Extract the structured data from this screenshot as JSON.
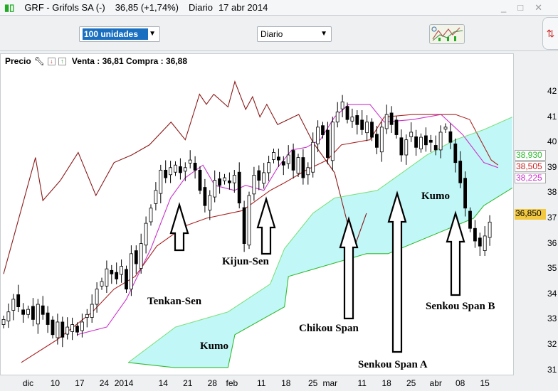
{
  "window": {
    "title": "GRF - Grifols SA (-)",
    "price": "36,85 (+1,74%)",
    "period": "Diario",
    "date": "17 abr 2014",
    "controls": [
      "minimize",
      "maximize",
      "close"
    ]
  },
  "toolbar": {
    "quantity": "100 unidades",
    "timeframe": "Diario",
    "ichimoku_icon": "ichimoku-indicator-icon"
  },
  "chart_header": {
    "label": "Precio",
    "bid_ask": "Venta : 36,81 Compra : 36,88"
  },
  "chart_data": {
    "type": "candlestick",
    "title": "",
    "ylim": [
      31,
      42
    ],
    "y_ticks": [
      "42",
      "41",
      "40",
      "39",
      "38",
      "37",
      "36",
      "35",
      "34",
      "33",
      "32",
      "31"
    ],
    "x_ticks": [
      {
        "label": "dic",
        "i": 5
      },
      {
        "label": "10",
        "i": 10.5
      },
      {
        "label": "17",
        "i": 15.5
      },
      {
        "label": "24",
        "i": 20.5
      },
      {
        "label": "2014",
        "i": 24.5
      },
      {
        "label": "14",
        "i": 32.5
      },
      {
        "label": "21",
        "i": 37.5
      },
      {
        "label": "28",
        "i": 42.5
      },
      {
        "label": "feb",
        "i": 46.5
      },
      {
        "label": "11",
        "i": 52.5
      },
      {
        "label": "18",
        "i": 57.5
      },
      {
        "label": "25",
        "i": 63
      },
      {
        "label": "mar",
        "i": 66.5
      },
      {
        "label": "11",
        "i": 73
      },
      {
        "label": "18",
        "i": 78
      },
      {
        "label": "25",
        "i": 83
      },
      {
        "label": "abr",
        "i": 88
      },
      {
        "label": "08",
        "i": 93
      },
      {
        "label": "15",
        "i": 98
      }
    ],
    "closes": [
      33.0,
      33.3,
      33.8,
      33.5,
      33.2,
      33.4,
      33.0,
      33.6,
      33.2,
      32.8,
      32.4,
      32.9,
      32.3,
      32.7,
      32.8,
      32.5,
      32.9,
      33.2,
      33.6,
      34.2,
      34.5,
      35.0,
      34.8,
      34.6,
      35.1,
      34.2,
      35.6,
      35.2,
      36.0,
      36.8,
      37.4,
      38.1,
      38.9,
      38.6,
      39.0,
      39.1,
      38.8,
      39.0,
      39.3,
      38.9,
      38.1,
      37.5,
      37.9,
      38.5,
      38.3,
      38.6,
      38.4,
      38.7,
      37.6,
      36.0,
      37.9,
      38.7,
      38.5,
      38.8,
      39.2,
      39.6,
      39.3,
      39.1,
      39.5,
      38.9,
      39.4,
      38.6,
      39.0,
      40.0,
      40.6,
      40.3,
      39.4,
      40.8,
      41.2,
      41.6,
      40.9,
      41.0,
      40.7,
      40.5,
      40.8,
      40.2,
      39.8,
      40.6,
      41.1,
      40.7,
      40.3,
      39.5,
      40.1,
      40.4,
      39.8,
      40.2,
      39.9,
      40.0,
      39.7,
      40.4,
      40.6,
      40.0,
      39.2,
      38.4,
      37.4,
      36.6,
      36.1,
      35.9,
      36.3,
      36.85
    ],
    "lines": {
      "tenkan_sen": {
        "color": "#cc33cc",
        "points": [
          [
            15,
            32.4
          ],
          [
            21,
            32.7
          ],
          [
            25,
            33.8
          ],
          [
            30,
            35.8
          ],
          [
            34,
            37.8
          ],
          [
            37,
            38.6
          ],
          [
            40.6,
            39.1
          ],
          [
            43,
            38.3
          ],
          [
            47,
            38.1
          ],
          [
            49.3,
            38.3
          ],
          [
            53,
            38.1
          ],
          [
            55.8,
            39.0
          ],
          [
            58.7,
            39.7
          ],
          [
            61.6,
            39.8
          ],
          [
            64.5,
            40.1
          ],
          [
            67.4,
            41.0
          ],
          [
            70.3,
            41.5
          ],
          [
            74.6,
            41.5
          ],
          [
            77.5,
            40.8
          ],
          [
            83.3,
            40.9
          ],
          [
            89.1,
            41.1
          ],
          [
            93.5,
            40.3
          ],
          [
            97.8,
            39.2
          ],
          [
            100.7,
            39.0
          ]
        ]
      },
      "kijun_sen": {
        "color": "#aa2222",
        "points": [
          [
            3.6,
            31.3
          ],
          [
            10.9,
            32.2
          ],
          [
            18.1,
            33.3
          ],
          [
            22.5,
            34.2
          ],
          [
            26.8,
            34.7
          ],
          [
            31.2,
            35.9
          ],
          [
            37,
            36.7
          ],
          [
            41.3,
            37.0
          ],
          [
            48.6,
            37.3
          ],
          [
            54.3,
            38.1
          ],
          [
            57.2,
            38.4
          ],
          [
            61.6,
            38.9
          ],
          [
            65.9,
            39.3
          ],
          [
            68.8,
            39.9
          ],
          [
            74.6,
            40.1
          ],
          [
            77.5,
            41.0
          ],
          [
            83.3,
            41.1
          ],
          [
            92,
            41.1
          ],
          [
            94.9,
            40.9
          ],
          [
            99.3,
            39.3
          ],
          [
            100.7,
            39.1
          ]
        ]
      },
      "chikou_span": {
        "color": "#8b1a1a",
        "points": [
          [
            0,
            34.8
          ],
          [
            6.5,
            39.4
          ],
          [
            8,
            37.7
          ],
          [
            11.6,
            38.5
          ],
          [
            15.2,
            39.6
          ],
          [
            18.8,
            37.9
          ],
          [
            22.5,
            39.2
          ],
          [
            26.1,
            39.5
          ],
          [
            29.7,
            39.9
          ],
          [
            34.1,
            40.8
          ],
          [
            37,
            40.1
          ],
          [
            39.1,
            41.4
          ],
          [
            39.9,
            41.9
          ],
          [
            41.3,
            41.5
          ],
          [
            42.8,
            41.9
          ],
          [
            45.7,
            41.4
          ],
          [
            47.1,
            42.4
          ],
          [
            49.3,
            41.3
          ],
          [
            50.7,
            41.8
          ],
          [
            52.2,
            41.0
          ],
          [
            53.6,
            41.5
          ],
          [
            55.8,
            40.7
          ],
          [
            60.1,
            41.1
          ],
          [
            63,
            40.0
          ],
          [
            67.4,
            38.8
          ],
          [
            70.3,
            36.6
          ],
          [
            71.7,
            36.0
          ],
          [
            73.9,
            37.2
          ]
        ]
      },
      "senkou_span_a": {
        "color": "#7fe07f",
        "points": [
          [
            25.4,
            31.3
          ],
          [
            35,
            32.7
          ],
          [
            45.7,
            33.3
          ],
          [
            54.3,
            34.4
          ],
          [
            57.2,
            35.8
          ],
          [
            63,
            37.2
          ],
          [
            67.4,
            37.8
          ],
          [
            76.1,
            38.1
          ],
          [
            81.9,
            38.9
          ],
          [
            86.2,
            39.5
          ],
          [
            92,
            40.1
          ],
          [
            97.8,
            40.5
          ],
          [
            103.6,
            41.0
          ]
        ]
      },
      "senkou_span_b": {
        "color": "#33bb33",
        "points": [
          [
            25.4,
            31.3
          ],
          [
            34.8,
            31.1
          ],
          [
            45.7,
            31.1
          ],
          [
            47.1,
            32.4
          ],
          [
            57.2,
            33.5
          ],
          [
            58,
            34.7
          ],
          [
            73.9,
            35.6
          ],
          [
            78.3,
            35.6
          ],
          [
            95.7,
            37.0
          ],
          [
            97.8,
            37.5
          ],
          [
            103.6,
            38.2
          ]
        ]
      }
    },
    "kumo_color": "#c2f7f7",
    "value_tags": [
      {
        "value": "38,930",
        "color": "#33bb33"
      },
      {
        "value": "38,505",
        "color": "#cc2222"
      },
      {
        "value": "38,225",
        "color": "#cc33cc"
      },
      {
        "value": "36,850",
        "color": "#000000",
        "bg": "#f2c840"
      }
    ],
    "annotations": [
      "Tenkan-Sen",
      "Kijun-Sen",
      "Kumo",
      "Chikou Span",
      "Senkou Span A",
      "Kumo",
      "Senkou Span B"
    ]
  }
}
